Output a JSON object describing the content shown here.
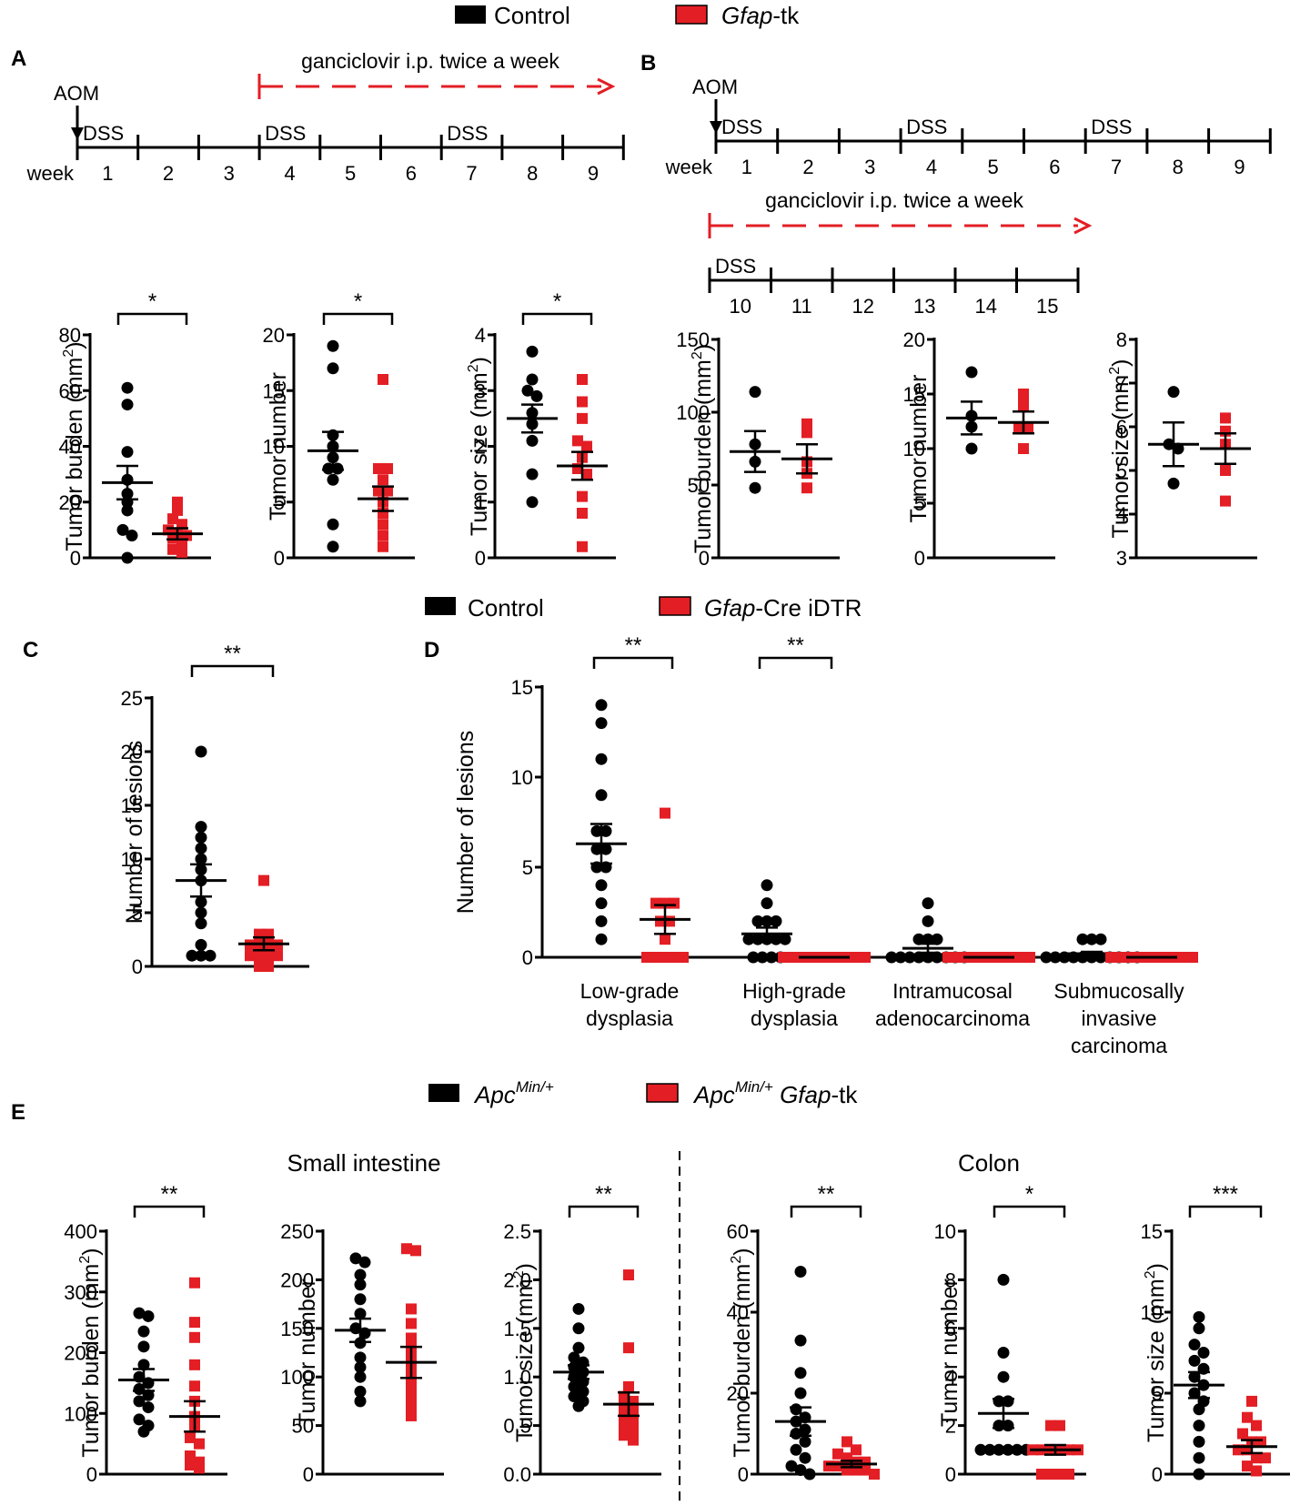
{
  "colors": {
    "control": "#000000",
    "treatment": "#e31e24"
  },
  "legends": {
    "ab": {
      "control": "Control",
      "treat_italic": "Gfap",
      "treat_rest": "-tk"
    },
    "cd": {
      "control": "Control",
      "treat_italic": "Gfap",
      "treat_rest": "-Cre iDTR"
    },
    "e": {
      "control_main": "Apc",
      "control_sup": "Min/+",
      "treat_main": "Apc",
      "treat_sup": "Min/+",
      "treat_italic": " Gfap",
      "treat_rest": "-tk"
    }
  },
  "panels": {
    "a": "A",
    "b": "B",
    "c": "C",
    "d": "D",
    "e": "E"
  },
  "timelines": {
    "a": {
      "aom": "AOM",
      "ganciclovir": "ganciclovir i.p. twice a week",
      "dss": "DSS",
      "week_label": "week",
      "weeks": [
        "1",
        "2",
        "3",
        "4",
        "5",
        "6",
        "7",
        "8",
        "9"
      ]
    },
    "b": {
      "aom": "AOM",
      "ganciclovir": "ganciclovir i.p. twice a week",
      "dss": "DSS",
      "week_label": "week",
      "weeks": [
        "1",
        "2",
        "3",
        "4",
        "5",
        "6",
        "7",
        "8",
        "9"
      ],
      "weeks2": [
        "10",
        "11",
        "12",
        "13",
        "14",
        "15"
      ]
    }
  },
  "section_titles": {
    "small": "Small intestine",
    "colon": "Colon"
  },
  "chart_data": [
    {
      "id": "A1",
      "type": "scatter",
      "ylabel": "Tumor burden (mm²)",
      "ylim": [
        0,
        80
      ],
      "yticks": [
        "0",
        "20",
        "40",
        "60",
        "80"
      ],
      "significance": "*",
      "control": {
        "values": [
          61,
          55,
          38,
          28,
          23,
          20,
          17,
          10,
          8,
          0
        ],
        "mean": 27,
        "sem": 6
      },
      "treatment": {
        "values": [
          20,
          17,
          14,
          12,
          10,
          9,
          8,
          7,
          5,
          3,
          2
        ],
        "mean": 8.6,
        "sem": 2
      }
    },
    {
      "id": "A2",
      "type": "scatter",
      "ylabel": "Tumor number",
      "ylim": [
        0,
        20
      ],
      "yticks": [
        "0",
        "5",
        "10",
        "15",
        "20"
      ],
      "significance": "*",
      "control": {
        "values": [
          19,
          17,
          11,
          10,
          9,
          8,
          8,
          7,
          3,
          1
        ],
        "mean": 9.6,
        "sem": 1.7
      },
      "treatment": {
        "values": [
          16,
          8,
          8,
          7,
          6,
          6,
          5,
          4,
          3,
          2,
          1
        ],
        "mean": 5.3,
        "sem": 1.1
      }
    },
    {
      "id": "A3",
      "type": "scatter",
      "ylabel": "Tumor size (mm²)",
      "ylim": [
        0,
        4
      ],
      "yticks": [
        "0",
        "1",
        "2",
        "3",
        "4"
      ],
      "significance": "*",
      "control": {
        "values": [
          3.7,
          3.2,
          3.0,
          2.9,
          2.6,
          2.4,
          2.1,
          1.5,
          1.0
        ],
        "mean": 2.5,
        "sem": 0.25
      },
      "treatment": {
        "values": [
          3.2,
          2.8,
          2.5,
          2.1,
          2.0,
          1.8,
          1.6,
          1.5,
          1.1,
          0.8,
          0.2
        ],
        "mean": 1.65,
        "sem": 0.25
      }
    },
    {
      "id": "B1",
      "type": "scatter",
      "ylabel": "Tumor burden (mm²)",
      "ylim": [
        0,
        150
      ],
      "yticks": [
        "0",
        "50",
        "100",
        "150"
      ],
      "significance": "",
      "control": {
        "values": [
          114,
          78,
          66,
          48
        ],
        "mean": 73,
        "sem": 14
      },
      "treatment": {
        "values": [
          92,
          86,
          66,
          58,
          48
        ],
        "mean": 68,
        "sem": 10
      }
    },
    {
      "id": "B2",
      "type": "scatter",
      "ylabel": "Tumor number",
      "ylim": [
        0,
        20
      ],
      "yticks": [
        "0",
        "5",
        "10",
        "15",
        "20"
      ],
      "significance": "",
      "control": {
        "values": [
          17,
          13,
          12,
          10
        ],
        "mean": 12.8,
        "sem": 1.5
      },
      "treatment": {
        "values": [
          15,
          14,
          12,
          12,
          10
        ],
        "mean": 12.4,
        "sem": 1.0
      }
    },
    {
      "id": "B3",
      "type": "scatter",
      "ylabel": "Tumor size (mm²)",
      "ylim": [
        3,
        8
      ],
      "yticks": [
        "3",
        "4",
        "5",
        "6",
        "7",
        "8"
      ],
      "significance": "",
      "control": {
        "values": [
          6.8,
          5.6,
          5.5,
          4.7
        ],
        "mean": 5.6,
        "sem": 0.5
      },
      "treatment": {
        "values": [
          6.2,
          5.9,
          5.6,
          5.0,
          4.3
        ],
        "mean": 5.5,
        "sem": 0.35
      }
    },
    {
      "id": "C",
      "type": "scatter",
      "ylabel": "Number of lesions",
      "ylim": [
        0,
        25
      ],
      "yticks": [
        "0",
        "5",
        "10",
        "15",
        "20",
        "25"
      ],
      "significance": "**",
      "control": {
        "values": [
          20,
          13,
          12,
          11,
          10,
          9,
          8,
          6,
          5,
          4,
          2,
          1,
          1,
          1
        ],
        "mean": 8,
        "sem": 1.5
      },
      "treatment": {
        "values": [
          8,
          3,
          3,
          2,
          2,
          2,
          2,
          1,
          1,
          1,
          1,
          0,
          0
        ],
        "mean": 2.1,
        "sem": 0.6
      }
    },
    {
      "id": "D",
      "type": "scatter",
      "ylabel": "Number of lesions",
      "ylim": [
        0,
        15
      ],
      "yticks": [
        "0",
        "5",
        "10",
        "15"
      ],
      "categories": [
        "Low-grade dysplasia",
        "High-grade dysplasia",
        "Intramucosal adenocarcinoma",
        "Submucosally invasive carcinoma"
      ],
      "category_lines": [
        [
          "Low-grade",
          "dysplasia"
        ],
        [
          "High-grade",
          "dysplasia"
        ],
        [
          "Intramucosal",
          "adenocarcinoma"
        ],
        [
          "Submucosally",
          "invasive",
          "carcinoma"
        ]
      ],
      "significance": [
        "**",
        "**",
        "",
        ""
      ],
      "groups": [
        {
          "control": {
            "values": [
              14,
              13,
              11,
              9,
              7,
              7,
              6,
              6,
              5,
              5,
              4,
              3,
              2,
              1
            ],
            "mean": 6.3,
            "sem": 1.1
          },
          "treatment": {
            "values": [
              8,
              3,
              3,
              3,
              2,
              2,
              1,
              0,
              0,
              0,
              0,
              0
            ],
            "mean": 2.1,
            "sem": 0.8
          }
        },
        {
          "control": {
            "values": [
              4,
              3,
              2,
              2,
              2,
              1,
              1,
              1,
              1,
              1,
              0,
              0,
              0,
              0
            ],
            "mean": 1.3,
            "sem": 0.35
          },
          "treatment": {
            "values": [
              0,
              0,
              0,
              0,
              0,
              0,
              0,
              0,
              0,
              0
            ],
            "mean": 0,
            "sem": 0
          }
        },
        {
          "control": {
            "values": [
              3,
              2,
              1,
              1,
              1,
              0,
              0,
              0,
              0,
              0,
              0,
              0,
              0,
              0
            ],
            "mean": 0.5,
            "sem": 0.25
          },
          "treatment": {
            "values": [
              0,
              0,
              0,
              0,
              0,
              0,
              0,
              0,
              0,
              0
            ],
            "mean": 0,
            "sem": 0
          }
        },
        {
          "control": {
            "values": [
              1,
              1,
              1,
              0,
              0,
              0,
              0,
              0,
              0,
              0,
              0,
              0,
              0,
              0
            ],
            "mean": 0.2,
            "sem": 0.1
          },
          "treatment": {
            "values": [
              0,
              0,
              0,
              0,
              0,
              0,
              0,
              0,
              0,
              0
            ],
            "mean": 0,
            "sem": 0
          }
        }
      ]
    },
    {
      "id": "E1",
      "type": "scatter",
      "section": "Small intestine",
      "ylabel": "Tumor burden (mm²)",
      "ylim": [
        0,
        400
      ],
      "yticks": [
        "0",
        "100",
        "200",
        "300",
        "400"
      ],
      "significance": "**",
      "control": {
        "values": [
          265,
          260,
          235,
          210,
          180,
          160,
          150,
          140,
          130,
          120,
          110,
          90,
          80,
          70
        ],
        "mean": 155,
        "sem": 18
      },
      "treatment": {
        "values": [
          315,
          250,
          225,
          180,
          145,
          120,
          95,
          80,
          60,
          50,
          30,
          20,
          15,
          10
        ],
        "mean": 95,
        "sem": 25
      }
    },
    {
      "id": "E2",
      "type": "scatter",
      "section": "Small intestine",
      "ylabel": "Tumor number",
      "ylim": [
        0,
        250
      ],
      "yticks": [
        "0",
        "50",
        "100",
        "150",
        "200",
        "250"
      ],
      "significance": "",
      "control": {
        "values": [
          222,
          218,
          205,
          195,
          180,
          165,
          150,
          145,
          135,
          120,
          110,
          100,
          85,
          75
        ],
        "mean": 148,
        "sem": 12
      },
      "treatment": {
        "values": [
          232,
          230,
          170,
          155,
          140,
          130,
          120,
          110,
          100,
          90,
          80,
          70,
          60
        ],
        "mean": 115,
        "sem": 16
      }
    },
    {
      "id": "E3",
      "type": "scatter",
      "section": "Small intestine",
      "ylabel": "Tumor size (mm²)",
      "ylim": [
        0,
        2.5
      ],
      "yticks": [
        "0.0",
        "0.5",
        "1.0",
        "1.5",
        "2.0",
        "2.5"
      ],
      "significance": "**",
      "control": {
        "values": [
          1.7,
          1.5,
          1.3,
          1.2,
          1.15,
          1.1,
          1.05,
          1.0,
          0.95,
          0.9,
          0.85,
          0.8,
          0.75,
          0.7
        ],
        "mean": 1.05,
        "sem": 0.07
      },
      "treatment": {
        "values": [
          2.05,
          1.3,
          0.9,
          0.8,
          0.75,
          0.7,
          0.65,
          0.6,
          0.55,
          0.5,
          0.45,
          0.4,
          0.35
        ],
        "mean": 0.72,
        "sem": 0.12
      }
    },
    {
      "id": "E4",
      "type": "scatter",
      "section": "Colon",
      "ylabel": "Tumor burden (mm²)",
      "ylim": [
        0,
        60
      ],
      "yticks": [
        "0",
        "20",
        "40",
        "60"
      ],
      "significance": "**",
      "control": {
        "values": [
          50,
          33,
          25,
          20,
          16,
          14,
          13,
          11,
          10,
          8,
          6,
          4,
          2,
          1,
          0
        ],
        "mean": 13,
        "sem": 3.5
      },
      "treatment": {
        "values": [
          8,
          6,
          5,
          4,
          3,
          3,
          2,
          2,
          1,
          1,
          1,
          0
        ],
        "mean": 2.5,
        "sem": 0.8
      }
    },
    {
      "id": "E5",
      "type": "scatter",
      "section": "Colon",
      "ylabel": "Tumor number",
      "ylim": [
        0,
        10
      ],
      "yticks": [
        "0",
        "2",
        "4",
        "6",
        "8",
        "10"
      ],
      "significance": "*",
      "control": {
        "values": [
          8,
          5,
          4,
          3,
          3,
          2,
          2,
          1,
          1,
          1,
          1,
          1,
          1
        ],
        "mean": 2.5,
        "sem": 0.6
      },
      "treatment": {
        "values": [
          2,
          2,
          1,
          1,
          1,
          1,
          1,
          1,
          0,
          0,
          0,
          0
        ],
        "mean": 1.0,
        "sem": 0.2
      }
    },
    {
      "id": "E6",
      "type": "scatter",
      "section": "Colon",
      "ylabel": "Tumor size (mm²)",
      "ylim": [
        0,
        15
      ],
      "yticks": [
        "0",
        "5",
        "10",
        "15"
      ],
      "significance": "***",
      "control": {
        "values": [
          9.7,
          9,
          8,
          7.5,
          7,
          6.5,
          6,
          5.5,
          5,
          4.5,
          4,
          3,
          2,
          1,
          0
        ],
        "mean": 5.5,
        "sem": 0.8
      },
      "treatment": {
        "values": [
          4.5,
          3.5,
          3,
          2.5,
          2,
          2,
          1.5,
          1.5,
          1,
          1,
          0.5,
          0.2
        ],
        "mean": 1.7,
        "sem": 0.4
      }
    }
  ]
}
